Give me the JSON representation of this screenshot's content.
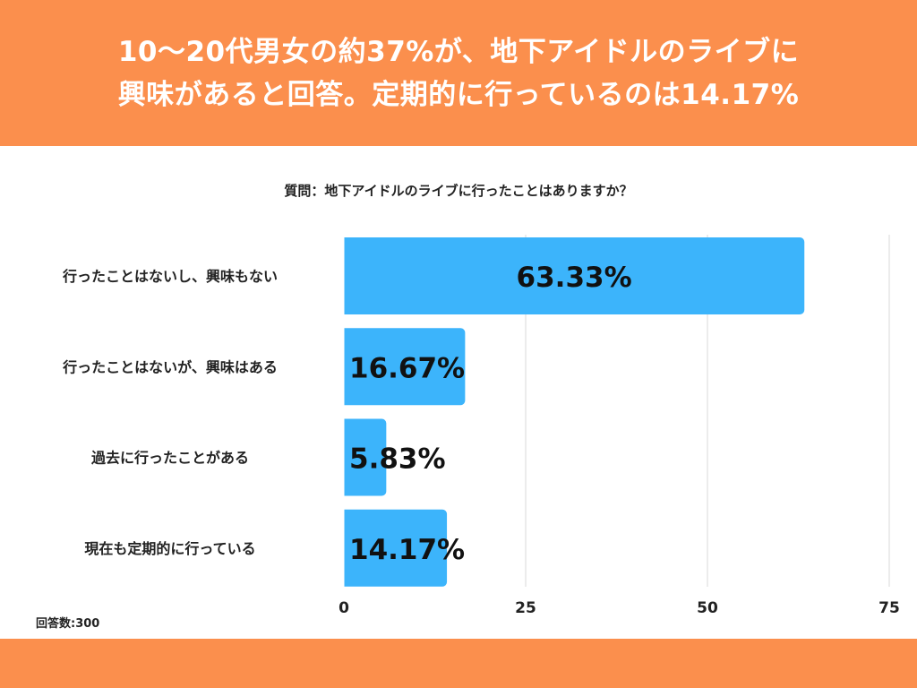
{
  "header": {
    "title_line1": "10～20代男女の約37%が、地下アイドルのライブに",
    "title_line2": "興味があると回答。定期的に行っているのは14.17%"
  },
  "question": "質問：地下アイドルのライブに行ったことはありますか？",
  "footnote": "回答数:300",
  "colors": {
    "header_bg": "#fb8f4d",
    "bar": "#3cb4fb",
    "grid": "#d9d9d9"
  },
  "chart_data": {
    "type": "bar",
    "orientation": "horizontal",
    "categories": [
      "行ったことはないし、興味もない",
      "行ったことはないが、興味はある",
      "過去に行ったことがある",
      "現在も定期的に行っている"
    ],
    "values": [
      63.33,
      16.67,
      5.83,
      14.17
    ],
    "value_labels": [
      "63.33%",
      "16.67%",
      "5.83%",
      "14.17%"
    ],
    "xlim": [
      0,
      75
    ],
    "xticks": [
      "0",
      "25",
      "50",
      "75"
    ],
    "grid": true
  }
}
